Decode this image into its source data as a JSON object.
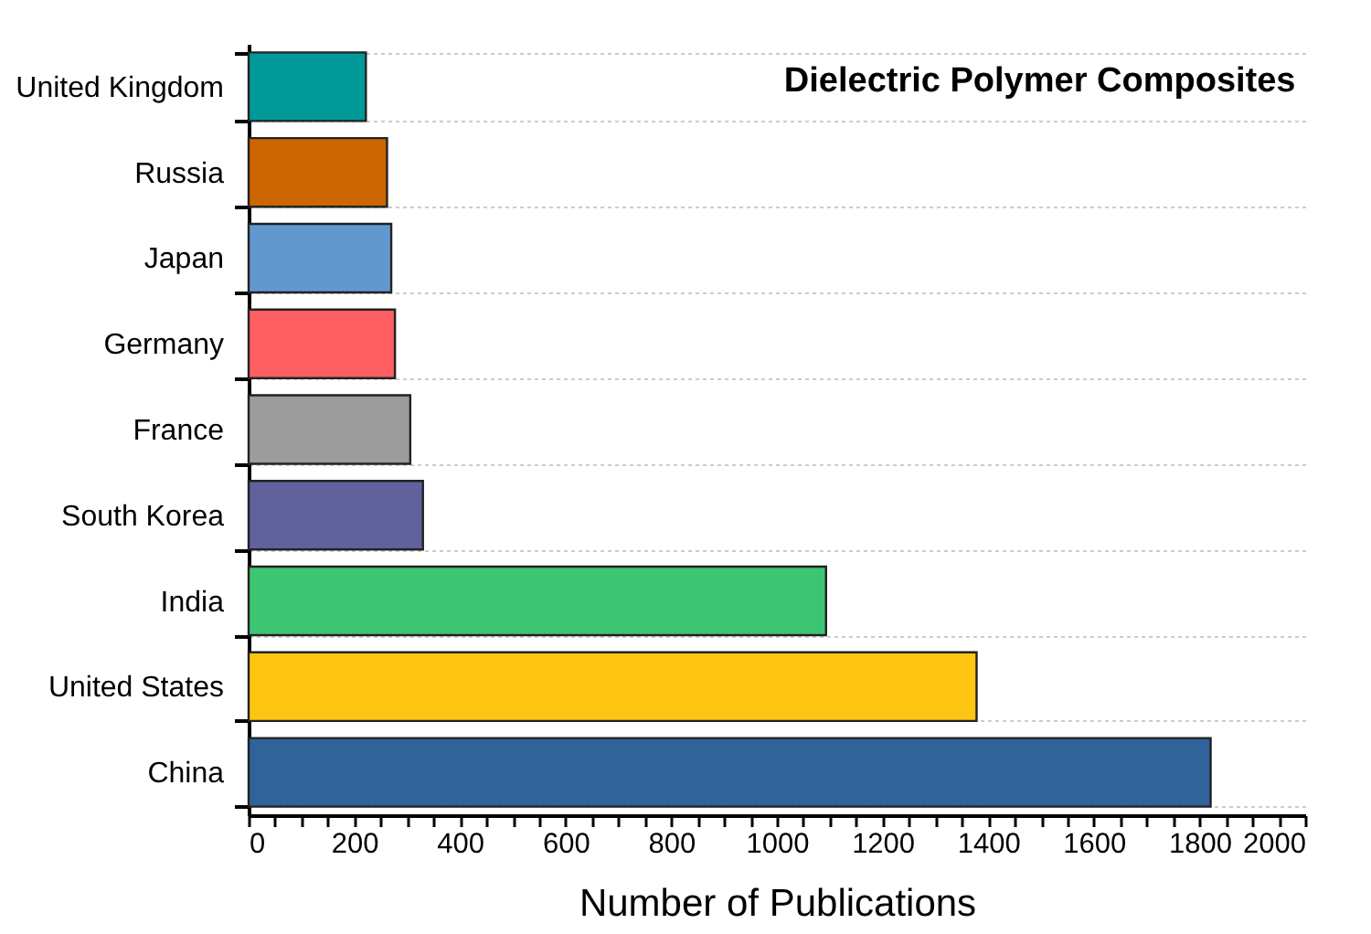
{
  "chart_data": {
    "type": "bar",
    "orientation": "horizontal",
    "title": "Dielectric Polymer Composites",
    "xlabel": "Number of Publications",
    "categories": [
      "United Kingdom",
      "Russia",
      "Japan",
      "Germany",
      "France",
      "South Korea",
      "India",
      "United States",
      "China"
    ],
    "values": [
      222,
      262,
      270,
      277,
      306,
      330,
      1093,
      1378,
      1821
    ],
    "colors": [
      "#009999",
      "#cc6600",
      "#6199cf",
      "#ff5f63",
      "#9c9c9c",
      "#61619c",
      "#3cc674",
      "#fec612",
      "#2f6399"
    ],
    "xlim": [
      0,
      2000
    ],
    "xticks": [
      0,
      {
        "value": 50,
        "label": null
      },
      {
        "value": 100,
        "label": null
      },
      {
        "value": 150,
        "label": null
      },
      200,
      {
        "value": 250,
        "label": null
      },
      {
        "value": 300,
        "label": null
      },
      {
        "value": 350,
        "label": null
      },
      400,
      {
        "value": 450,
        "label": null
      },
      {
        "value": 500,
        "label": null
      },
      {
        "value": 550,
        "label": null
      },
      600,
      {
        "value": 650,
        "label": null
      },
      {
        "value": 700,
        "label": null
      },
      {
        "value": 750,
        "label": null
      },
      800,
      {
        "value": 850,
        "label": null
      },
      {
        "value": 900,
        "label": null
      },
      {
        "value": 950,
        "label": null
      },
      1000,
      {
        "value": 1050,
        "label": null
      },
      {
        "value": 1100,
        "label": null
      },
      {
        "value": 1150,
        "label": null
      },
      1200,
      {
        "value": 1250,
        "label": null
      },
      {
        "value": 1300,
        "label": null
      },
      {
        "value": 1350,
        "label": null
      },
      1400,
      {
        "value": 1450,
        "label": null
      },
      {
        "value": 1500,
        "label": null
      },
      {
        "value": 1550,
        "label": null
      },
      1600,
      {
        "value": 1650,
        "label": null
      },
      {
        "value": 1700,
        "label": null
      },
      {
        "value": 1750,
        "label": null
      },
      1800,
      {
        "value": 1850,
        "label": null
      },
      {
        "value": 1900,
        "label": null
      },
      {
        "value": 1950,
        "label": null
      },
      2000
    ],
    "grid": "y"
  }
}
